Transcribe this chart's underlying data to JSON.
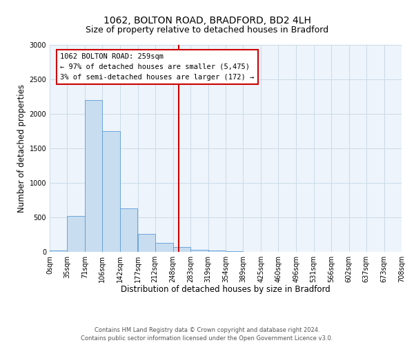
{
  "title1": "1062, BOLTON ROAD, BRADFORD, BD2 4LH",
  "title2": "Size of property relative to detached houses in Bradford",
  "xlabel": "Distribution of detached houses by size in Bradford",
  "ylabel": "Number of detached properties",
  "bar_color": "#c8ddf0",
  "bar_edge_color": "#5b9bd5",
  "grid_color": "#c8dae8",
  "background_color": "#eef4fb",
  "vline_x": 259,
  "vline_color": "#cc0000",
  "annotation_box_color": "#cc0000",
  "annotation_lines": [
    "1062 BOLTON ROAD: 259sqm",
    "← 97% of detached houses are smaller (5,475)",
    "3% of semi-detached houses are larger (172) →"
  ],
  "bin_edges": [
    0,
    35,
    71,
    106,
    142,
    177,
    212,
    248,
    283,
    319,
    354,
    389,
    425,
    460,
    496,
    531,
    566,
    602,
    637,
    673,
    708
  ],
  "bin_counts": [
    25,
    520,
    2200,
    1750,
    635,
    260,
    130,
    75,
    35,
    20,
    10,
    5,
    3,
    2,
    1,
    1,
    0,
    0,
    1,
    0
  ],
  "ylim": [
    0,
    3000
  ],
  "yticks": [
    0,
    500,
    1000,
    1500,
    2000,
    2500,
    3000
  ],
  "xlim": [
    0,
    708
  ],
  "footnote1": "Contains HM Land Registry data © Crown copyright and database right 2024.",
  "footnote2": "Contains public sector information licensed under the Open Government Licence v3.0.",
  "title_fontsize": 10,
  "subtitle_fontsize": 9,
  "axis_label_fontsize": 8.5,
  "tick_fontsize": 7,
  "annotation_fontsize": 7.5,
  "footnote_fontsize": 6
}
